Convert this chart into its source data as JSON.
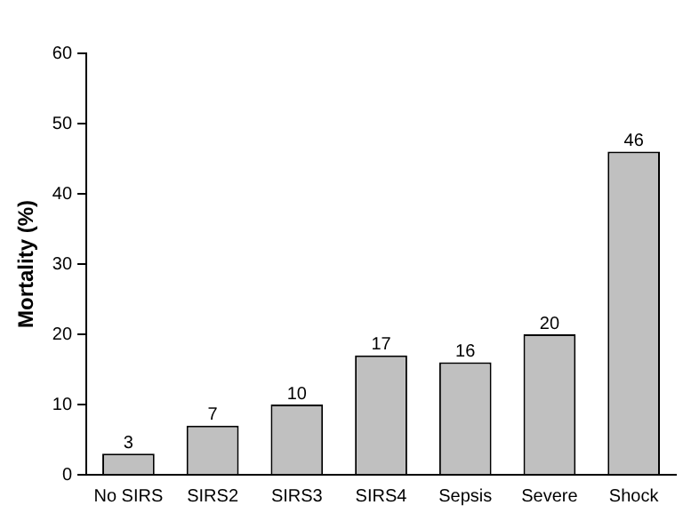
{
  "chart_data": {
    "type": "bar",
    "ylabel": "Mortality (%)",
    "categories": [
      "No SIRS",
      "SIRS2",
      "SIRS3",
      "SIRS4",
      "Sepsis",
      "Severe",
      "Shock"
    ],
    "values": [
      3,
      7,
      10,
      17,
      16,
      20,
      46
    ],
    "color": "#c0c0c0",
    "ylim": [
      0,
      60
    ],
    "yticks": [
      0,
      10,
      20,
      30,
      40,
      50,
      60
    ],
    "grid": false,
    "legend": false,
    "data_labels": true
  }
}
